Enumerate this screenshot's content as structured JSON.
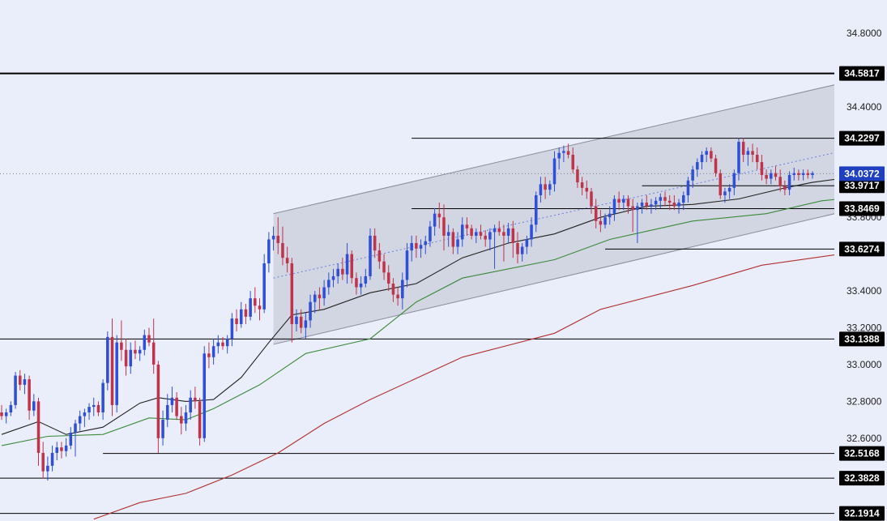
{
  "chart_data": {
    "type": "candlestick",
    "y_range": [
      32.15,
      34.95
    ],
    "y_ticks": [
      "34.8000",
      "34.4000",
      "33.8000",
      "33.4000",
      "33.2000",
      "33.0000",
      "32.8000",
      "32.6000"
    ],
    "current_price": {
      "value": 34.0372,
      "label": "34.0372",
      "color": "#1f3fbf"
    },
    "levels": [
      {
        "value": 34.5817,
        "label": "34.5817",
        "from": 0
      },
      {
        "value": 34.2297,
        "label": "34.2297",
        "from": 89
      },
      {
        "value": 33.9717,
        "label": "33.9717",
        "from": 139
      },
      {
        "value": 33.8469,
        "label": "33.8469",
        "from": 89
      },
      {
        "value": 33.6274,
        "label": "33.6274",
        "from": 131
      },
      {
        "value": 33.1388,
        "label": "33.1388",
        "from": 0
      },
      {
        "value": 32.5168,
        "label": "32.5168",
        "from": 22
      },
      {
        "value": 32.3828,
        "label": "32.3828",
        "from": 0
      },
      {
        "value": 32.1914,
        "label": "32.1914",
        "from": 0
      }
    ],
    "channel": {
      "start_index": 59,
      "end_index": 186,
      "upper": [
        33.82,
        34.55
      ],
      "lower": [
        33.11,
        33.85
      ],
      "mid": [
        33.47,
        34.18
      ]
    },
    "moving_averages": [
      {
        "name": "",
        "color": "#222222",
        "points": [
          [
            0,
            32.62
          ],
          [
            8,
            32.69
          ],
          [
            14,
            32.62
          ],
          [
            22,
            32.66
          ],
          [
            30,
            32.79
          ],
          [
            34,
            32.82
          ],
          [
            40,
            32.8
          ],
          [
            46,
            32.81
          ],
          [
            52,
            32.93
          ],
          [
            58,
            33.12
          ],
          [
            63,
            33.27
          ],
          [
            70,
            33.3
          ],
          [
            80,
            33.39
          ],
          [
            90,
            33.44
          ],
          [
            100,
            33.58
          ],
          [
            110,
            33.66
          ],
          [
            120,
            33.71
          ],
          [
            130,
            33.8
          ],
          [
            140,
            33.86
          ],
          [
            150,
            33.87
          ],
          [
            160,
            33.9
          ],
          [
            170,
            33.96
          ],
          [
            176,
            33.99
          ],
          [
            182,
            34.01
          ]
        ]
      },
      {
        "name": "",
        "color": "#3a8a3a",
        "points": [
          [
            0,
            32.56
          ],
          [
            10,
            32.61
          ],
          [
            22,
            32.62
          ],
          [
            32,
            32.71
          ],
          [
            40,
            32.7
          ],
          [
            46,
            32.76
          ],
          [
            56,
            32.89
          ],
          [
            66,
            33.06
          ],
          [
            80,
            33.14
          ],
          [
            90,
            33.34
          ],
          [
            100,
            33.47
          ],
          [
            120,
            33.57
          ],
          [
            132,
            33.68
          ],
          [
            150,
            33.78
          ],
          [
            166,
            33.82
          ],
          [
            178,
            33.89
          ],
          [
            182,
            33.9
          ]
        ]
      },
      {
        "name": "",
        "color": "#b03030",
        "points": [
          [
            20,
            32.16
          ],
          [
            30,
            32.25
          ],
          [
            40,
            32.3
          ],
          [
            50,
            32.4
          ],
          [
            60,
            32.52
          ],
          [
            70,
            32.68
          ],
          [
            80,
            32.81
          ],
          [
            100,
            33.04
          ],
          [
            120,
            33.17
          ],
          [
            130,
            33.3
          ],
          [
            150,
            33.43
          ],
          [
            165,
            33.54
          ],
          [
            182,
            33.6
          ]
        ]
      }
    ],
    "candles": [
      [
        32.74,
        32.78,
        32.7,
        32.72
      ],
      [
        32.72,
        32.76,
        32.68,
        32.74
      ],
      [
        32.74,
        32.8,
        32.72,
        32.78
      ],
      [
        32.78,
        32.96,
        32.76,
        32.94
      ],
      [
        32.94,
        32.97,
        32.86,
        32.89
      ],
      [
        32.89,
        32.95,
        32.84,
        32.92
      ],
      [
        32.92,
        32.94,
        32.7,
        32.75
      ],
      [
        32.75,
        32.84,
        32.72,
        32.8
      ],
      [
        32.8,
        32.82,
        32.45,
        32.52
      ],
      [
        32.52,
        32.58,
        32.38,
        32.42
      ],
      [
        32.42,
        32.5,
        32.37,
        32.45
      ],
      [
        32.45,
        32.56,
        32.42,
        32.52
      ],
      [
        32.52,
        32.58,
        32.48,
        32.55
      ],
      [
        32.55,
        32.58,
        32.49,
        32.53
      ],
      [
        32.53,
        32.6,
        32.5,
        32.56
      ],
      [
        32.56,
        32.66,
        32.54,
        32.63
      ],
      [
        32.63,
        32.7,
        32.5,
        32.68
      ],
      [
        32.68,
        32.75,
        32.64,
        32.72
      ],
      [
        32.72,
        32.76,
        32.66,
        32.74
      ],
      [
        32.74,
        32.79,
        32.7,
        32.77
      ],
      [
        32.77,
        32.82,
        32.72,
        32.78
      ],
      [
        32.78,
        32.8,
        32.72,
        32.74
      ],
      [
        32.74,
        32.92,
        32.7,
        32.9
      ],
      [
        32.9,
        33.18,
        32.86,
        33.15
      ],
      [
        33.15,
        33.25,
        32.72,
        32.78
      ],
      [
        32.78,
        33.16,
        32.74,
        33.12
      ],
      [
        33.12,
        33.24,
        33.02,
        33.08
      ],
      [
        33.08,
        33.14,
        32.94,
        32.99
      ],
      [
        32.99,
        33.12,
        32.95,
        33.08
      ],
      [
        33.08,
        33.13,
        33.03,
        33.06
      ],
      [
        33.06,
        33.1,
        33.02,
        33.08
      ],
      [
        33.08,
        33.19,
        33.05,
        33.16
      ],
      [
        33.16,
        33.2,
        33.1,
        33.12
      ],
      [
        33.12,
        33.25,
        32.95,
        33.0
      ],
      [
        33.0,
        33.02,
        32.52,
        32.6
      ],
      [
        32.6,
        32.75,
        32.56,
        32.7
      ],
      [
        32.7,
        32.84,
        32.66,
        32.78
      ],
      [
        32.78,
        32.88,
        32.74,
        32.82
      ],
      [
        32.82,
        32.85,
        32.7,
        32.72
      ],
      [
        32.72,
        32.77,
        32.62,
        32.68
      ],
      [
        32.68,
        32.78,
        32.64,
        32.74
      ],
      [
        32.74,
        32.86,
        32.7,
        32.82
      ],
      [
        32.82,
        32.88,
        32.76,
        32.8
      ],
      [
        32.8,
        32.82,
        32.56,
        32.6
      ],
      [
        32.6,
        33.1,
        32.58,
        33.06
      ],
      [
        33.06,
        33.12,
        32.98,
        33.04
      ],
      [
        33.04,
        33.14,
        33.0,
        33.1
      ],
      [
        33.1,
        33.16,
        33.06,
        33.12
      ],
      [
        33.12,
        33.15,
        33.08,
        33.1
      ],
      [
        33.1,
        33.16,
        33.06,
        33.14
      ],
      [
        33.14,
        33.28,
        33.1,
        33.25
      ],
      [
        33.25,
        33.3,
        33.18,
        33.22
      ],
      [
        33.22,
        33.34,
        33.2,
        33.3
      ],
      [
        33.3,
        33.33,
        33.22,
        33.26
      ],
      [
        33.26,
        33.4,
        33.24,
        33.36
      ],
      [
        33.36,
        33.42,
        33.28,
        33.32
      ],
      [
        33.32,
        33.36,
        33.24,
        33.3
      ],
      [
        33.3,
        33.6,
        33.28,
        33.55
      ],
      [
        33.55,
        33.72,
        33.5,
        33.68
      ],
      [
        33.68,
        33.75,
        33.62,
        33.7
      ],
      [
        33.7,
        33.8,
        33.6,
        33.66
      ],
      [
        33.66,
        33.75,
        33.54,
        33.58
      ],
      [
        33.58,
        33.64,
        33.5,
        33.55
      ],
      [
        33.55,
        33.58,
        33.12,
        33.22
      ],
      [
        33.22,
        33.3,
        33.18,
        33.26
      ],
      [
        33.26,
        33.3,
        33.17,
        33.2
      ],
      [
        33.2,
        33.28,
        33.14,
        33.24
      ],
      [
        33.24,
        33.38,
        33.2,
        33.34
      ],
      [
        33.34,
        33.4,
        33.28,
        33.38
      ],
      [
        33.38,
        33.42,
        33.3,
        33.36
      ],
      [
        33.36,
        33.46,
        33.32,
        33.42
      ],
      [
        33.42,
        33.5,
        33.38,
        33.46
      ],
      [
        33.46,
        33.52,
        33.42,
        33.48
      ],
      [
        33.48,
        33.55,
        33.44,
        33.52
      ],
      [
        33.52,
        33.58,
        33.46,
        33.49
      ],
      [
        33.49,
        33.66,
        33.44,
        33.6
      ],
      [
        33.6,
        33.62,
        33.44,
        33.47
      ],
      [
        33.47,
        33.5,
        33.38,
        33.42
      ],
      [
        33.42,
        33.48,
        33.38,
        33.44
      ],
      [
        33.44,
        33.52,
        33.42,
        33.48
      ],
      [
        33.48,
        33.74,
        33.46,
        33.7
      ],
      [
        33.7,
        33.74,
        33.58,
        33.62
      ],
      [
        33.62,
        33.66,
        33.52,
        33.56
      ],
      [
        33.56,
        33.6,
        33.46,
        33.5
      ],
      [
        33.5,
        33.54,
        33.4,
        33.44
      ],
      [
        33.44,
        33.47,
        33.34,
        33.38
      ],
      [
        33.38,
        33.42,
        33.32,
        33.36
      ],
      [
        33.36,
        33.5,
        33.3,
        33.46
      ],
      [
        33.46,
        33.66,
        33.42,
        33.62
      ],
      [
        33.62,
        33.7,
        33.56,
        33.66
      ],
      [
        33.66,
        33.7,
        33.58,
        33.63
      ],
      [
        33.63,
        33.68,
        33.58,
        33.65
      ],
      [
        33.65,
        33.7,
        33.6,
        33.67
      ],
      [
        33.67,
        33.78,
        33.64,
        33.75
      ],
      [
        33.75,
        33.85,
        33.7,
        33.82
      ],
      [
        33.82,
        33.88,
        33.74,
        33.8
      ],
      [
        33.8,
        33.87,
        33.62,
        33.7
      ],
      [
        33.7,
        33.76,
        33.64,
        33.72
      ],
      [
        33.72,
        33.74,
        33.6,
        33.64
      ],
      [
        33.64,
        33.72,
        33.6,
        33.68
      ],
      [
        33.68,
        33.8,
        33.64,
        33.76
      ],
      [
        33.76,
        33.8,
        33.7,
        33.74
      ],
      [
        33.74,
        33.76,
        33.68,
        33.7
      ],
      [
        33.7,
        33.74,
        33.66,
        33.72
      ],
      [
        33.72,
        33.76,
        33.68,
        33.7
      ],
      [
        33.7,
        33.73,
        33.64,
        33.68
      ],
      [
        33.68,
        33.74,
        33.62,
        33.72
      ],
      [
        33.72,
        33.76,
        33.52,
        33.74
      ],
      [
        33.74,
        33.78,
        33.7,
        33.72
      ],
      [
        33.72,
        33.76,
        33.56,
        33.7
      ],
      [
        33.7,
        33.77,
        33.66,
        33.74
      ],
      [
        33.74,
        33.78,
        33.58,
        33.66
      ],
      [
        33.66,
        33.72,
        33.55,
        33.6
      ],
      [
        33.6,
        33.66,
        33.56,
        33.64
      ],
      [
        33.64,
        33.7,
        33.6,
        33.68
      ],
      [
        33.68,
        33.8,
        33.64,
        33.76
      ],
      [
        33.76,
        33.94,
        33.72,
        33.92
      ],
      [
        33.92,
        34.02,
        33.88,
        33.98
      ],
      [
        33.98,
        34.02,
        33.9,
        33.95
      ],
      [
        33.95,
        34.0,
        33.92,
        33.98
      ],
      [
        33.98,
        34.16,
        33.94,
        34.12
      ],
      [
        34.12,
        34.18,
        34.06,
        34.15
      ],
      [
        34.15,
        34.19,
        34.1,
        34.16
      ],
      [
        34.16,
        34.2,
        34.12,
        34.14
      ],
      [
        34.14,
        34.18,
        34.04,
        34.06
      ],
      [
        34.06,
        34.08,
        33.96,
        33.99
      ],
      [
        33.99,
        34.02,
        33.92,
        33.96
      ],
      [
        33.96,
        34.0,
        33.9,
        33.94
      ],
      [
        33.94,
        33.96,
        33.82,
        33.86
      ],
      [
        33.86,
        33.9,
        33.74,
        33.78
      ],
      [
        33.78,
        33.84,
        33.72,
        33.76
      ],
      [
        33.76,
        33.82,
        33.74,
        33.8
      ],
      [
        33.8,
        33.86,
        33.76,
        33.82
      ],
      [
        33.82,
        33.92,
        33.78,
        33.9
      ],
      [
        33.9,
        33.94,
        33.84,
        33.88
      ],
      [
        33.88,
        33.92,
        33.84,
        33.9
      ],
      [
        33.9,
        33.92,
        33.82,
        33.86
      ],
      [
        33.86,
        33.9,
        33.72,
        33.84
      ],
      [
        33.84,
        33.88,
        33.66,
        33.86
      ],
      [
        33.86,
        33.9,
        33.82,
        33.88
      ],
      [
        33.88,
        33.92,
        33.84,
        33.86
      ],
      [
        33.86,
        33.9,
        33.82,
        33.87
      ],
      [
        33.87,
        33.91,
        33.84,
        33.89
      ],
      [
        33.89,
        33.93,
        33.85,
        33.91
      ],
      [
        33.91,
        33.94,
        33.86,
        33.89
      ],
      [
        33.89,
        33.92,
        33.84,
        33.88
      ],
      [
        33.88,
        33.92,
        33.84,
        33.86
      ],
      [
        33.86,
        33.9,
        33.82,
        33.88
      ],
      [
        33.88,
        33.94,
        33.84,
        33.92
      ],
      [
        33.92,
        34.02,
        33.88,
        34.0
      ],
      [
        34.0,
        34.08,
        33.96,
        34.06
      ],
      [
        34.06,
        34.12,
        34.02,
        34.1
      ],
      [
        34.1,
        34.16,
        34.06,
        34.14
      ],
      [
        34.14,
        34.18,
        34.1,
        34.16
      ],
      [
        34.16,
        34.18,
        34.1,
        34.12
      ],
      [
        34.12,
        34.14,
        34.02,
        34.04
      ],
      [
        34.04,
        34.06,
        33.9,
        33.92
      ],
      [
        33.92,
        33.96,
        33.88,
        33.94
      ],
      [
        33.94,
        33.98,
        33.9,
        33.96
      ],
      [
        33.96,
        34.06,
        33.92,
        34.04
      ],
      [
        34.04,
        34.23,
        34.0,
        34.21
      ],
      [
        34.21,
        34.23,
        34.1,
        34.14
      ],
      [
        34.14,
        34.18,
        34.08,
        34.16
      ],
      [
        34.16,
        34.2,
        34.1,
        34.14
      ],
      [
        34.14,
        34.18,
        34.06,
        34.1
      ],
      [
        34.1,
        34.14,
        34.0,
        34.03
      ],
      [
        34.03,
        34.06,
        33.98,
        34.01
      ],
      [
        34.01,
        34.06,
        33.98,
        34.04
      ],
      [
        34.04,
        34.08,
        34.0,
        34.02
      ],
      [
        34.02,
        34.06,
        33.94,
        33.97
      ],
      [
        33.97,
        34.0,
        33.92,
        33.95
      ],
      [
        33.95,
        34.05,
        33.92,
        34.03
      ],
      [
        34.03,
        34.07,
        34.0,
        34.04
      ],
      [
        34.04,
        34.06,
        34.0,
        34.03
      ],
      [
        34.03,
        34.06,
        34.0,
        34.04
      ],
      [
        34.04,
        34.06,
        34.01,
        34.03
      ],
      [
        34.03,
        34.05,
        34.01,
        34.04
      ]
    ],
    "colors": {
      "up": "#2e4fd6",
      "down": "#c0344b",
      "background": "#eaeefa",
      "level_line": "#000000",
      "channel_fill": "#c9ccd9"
    }
  }
}
